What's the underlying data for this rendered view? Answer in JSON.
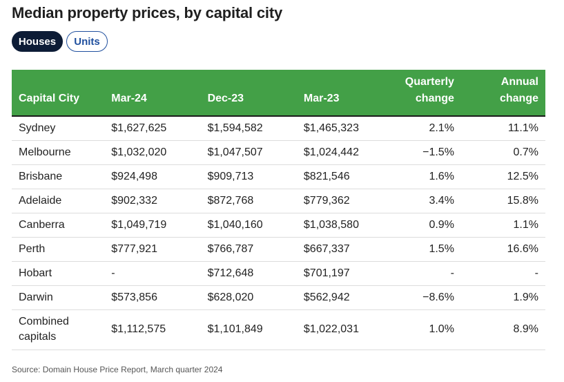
{
  "title": "Median property prices, by capital city",
  "toggle": {
    "houses_label": "Houses",
    "units_label": "Units"
  },
  "table": {
    "headers": {
      "city": "Capital City",
      "mar24": "Mar-24",
      "dec23": "Dec-23",
      "mar23": "Mar-23",
      "quarterly_line1": "Quarterly",
      "quarterly_line2": "change",
      "annual_line1": "Annual",
      "annual_line2": "change"
    },
    "rows": [
      {
        "city": "Sydney",
        "mar24": "$1,627,625",
        "dec23": "$1,594,582",
        "mar23": "$1,465,323",
        "quarterly": "2.1%",
        "annual": "11.1%"
      },
      {
        "city": "Melbourne",
        "mar24": "$1,032,020",
        "dec23": "$1,047,507",
        "mar23": "$1,024,442",
        "quarterly": "−1.5%",
        "annual": "0.7%"
      },
      {
        "city": "Brisbane",
        "mar24": "$924,498",
        "dec23": "$909,713",
        "mar23": "$821,546",
        "quarterly": "1.6%",
        "annual": "12.5%"
      },
      {
        "city": "Adelaide",
        "mar24": "$902,332",
        "dec23": "$872,768",
        "mar23": "$779,362",
        "quarterly": "3.4%",
        "annual": "15.8%"
      },
      {
        "city": "Canberra",
        "mar24": "$1,049,719",
        "dec23": "$1,040,160",
        "mar23": "$1,038,580",
        "quarterly": "0.9%",
        "annual": "1.1%"
      },
      {
        "city": "Perth",
        "mar24": "$777,921",
        "dec23": "$766,787",
        "mar23": "$667,337",
        "quarterly": "1.5%",
        "annual": "16.6%"
      },
      {
        "city": "Hobart",
        "mar24": "-",
        "dec23": "$712,648",
        "mar23": "$701,197",
        "quarterly": "-",
        "annual": "-"
      },
      {
        "city": "Darwin",
        "mar24": "$573,856",
        "dec23": "$628,020",
        "mar23": "$562,942",
        "quarterly": "−8.6%",
        "annual": "1.9%"
      }
    ],
    "combined": {
      "city_line1": "Combined",
      "city_line2": "capitals",
      "mar24": "$1,112,575",
      "dec23": "$1,101,849",
      "mar23": "$1,022,031",
      "quarterly": "1.0%",
      "annual": "8.9%"
    }
  },
  "source": "Source: Domain House Price Report, March quarter 2024",
  "colors": {
    "header_bg": "#43a047",
    "active_pill": "#0d1c36",
    "inactive_pill_border": "#1f4f9e"
  }
}
